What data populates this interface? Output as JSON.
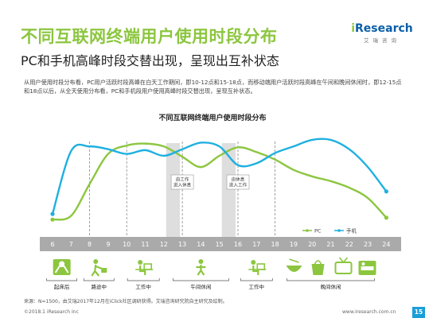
{
  "header": {
    "title": "不同互联网终端用户使用时段分布",
    "subtitle": "PC和手机高峰时段交替出现，呈现出互补状态",
    "description": "从用户使用时段分布看，PC用户活跃时段高峰在白天工作期间，即10-12点和15-18点，而移动端用户活跃时段高峰在午间和晚间休闲时，即12-15点和18点以后，从全天使用分布看，PC和手机段用户使用高峰时段交替出现，呈现互补状态。"
  },
  "logo": {
    "prefix": "i",
    "name": "Research",
    "sub": "艾瑞咨询"
  },
  "chart_data": {
    "type": "line",
    "title": "不同互联网终端用户使用时段分布",
    "x": [
      "6",
      "7",
      "8",
      "9",
      "10",
      "11",
      "12",
      "13",
      "14",
      "15",
      "16",
      "17",
      "18",
      "19",
      "20",
      "21",
      "22",
      "23",
      "24"
    ],
    "series": [
      {
        "name": "PC",
        "color": "#8cc63f",
        "values": [
          10,
          14,
          48,
          80,
          89,
          91,
          88,
          77,
          66,
          78,
          87,
          82,
          74,
          63,
          56,
          51,
          44,
          33,
          12
        ]
      },
      {
        "name": "手机",
        "color": "#1eb0e0",
        "values": [
          16,
          83,
          88,
          85,
          80,
          84,
          78,
          85,
          92,
          88,
          68,
          70,
          81,
          88,
          95,
          95,
          85,
          66,
          40
        ]
      }
    ],
    "ylim": [
      0,
      100
    ],
    "annotations": [
      {
        "text": [
          "由工作",
          "进入休息"
        ]
      },
      {
        "text": [
          "由休息",
          "进入工作"
        ]
      }
    ],
    "activities": [
      {
        "label": "起床后",
        "icon": "wake-up-icon"
      },
      {
        "label": "路途中",
        "icon": "commute-icon"
      },
      {
        "label": "工作中",
        "icon": "office-work-icon"
      },
      {
        "label": "午间休闲",
        "icon": "lunch-break-icon"
      },
      {
        "label": "工作中",
        "icon": "office-work-icon"
      },
      {
        "label": "晚间休闲",
        "icon": "evening-leisure-icon"
      }
    ]
  },
  "footer": {
    "source": "来源：N=1500，由艾瑞2017年12月在iClick社区调研获得。艾瑞咨询研究院自主研究及绘制。",
    "copyright": "©2018.1 iResearch Inc",
    "website": "www.iresearch.com.cn",
    "page": "15"
  }
}
